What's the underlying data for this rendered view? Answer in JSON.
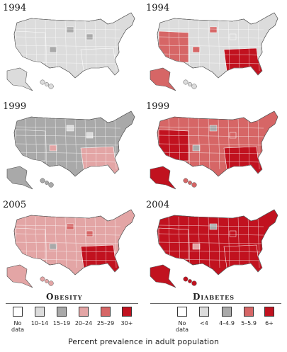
{
  "legend_colors": {
    "none": "#ffffff",
    "c1": "#dcdcdc",
    "c2": "#a9a9a9",
    "c3": "#e3a5a5",
    "c4": "#d66666",
    "c5": "#c1121f"
  },
  "panels": [
    {
      "label": "1994",
      "fill": "c1",
      "sw": "c1",
      "se": "c1",
      "extras": [
        "c2",
        "c2",
        "c2"
      ]
    },
    {
      "label": "1994",
      "fill": "c1",
      "sw": "c4",
      "se": "c5",
      "extras": [
        "c4",
        "c4",
        "c1"
      ]
    },
    {
      "label": "1999",
      "fill": "c2",
      "sw": "c2",
      "se": "c3",
      "extras": [
        "c3",
        "c1",
        "c1"
      ]
    },
    {
      "label": "1999",
      "fill": "c4",
      "sw": "c5",
      "se": "c5",
      "extras": [
        "c2",
        "c2",
        "c4"
      ]
    },
    {
      "label": "2005",
      "fill": "c3",
      "sw": "c3",
      "se": "c5",
      "extras": [
        "c2",
        "c4",
        "c4"
      ]
    },
    {
      "label": "2004",
      "fill": "c5",
      "sw": "c5",
      "se": "c5",
      "extras": [
        "c3",
        "c2",
        "c5"
      ]
    }
  ],
  "legends": {
    "obesity": {
      "title": "Obesity",
      "labels": [
        "No data",
        "10–14",
        "15–19",
        "20–24",
        "25–29",
        "30+"
      ],
      "swatches": [
        "none",
        "c1",
        "c2",
        "c3",
        "c4",
        "c5"
      ]
    },
    "diabetes": {
      "title": "Diabetes",
      "labels": [
        "No data",
        "<4",
        "4–4.9",
        "5–5.9",
        "6+"
      ],
      "swatches": [
        "none",
        "c1",
        "c2",
        "c4",
        "c5"
      ]
    }
  },
  "caption": "Percent prevalence in adult population"
}
